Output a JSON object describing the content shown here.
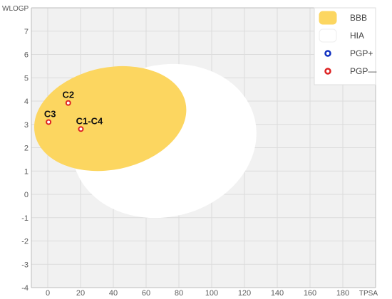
{
  "chart_data": {
    "type": "scatter",
    "xlabel": "TPSA",
    "ylabel": "WLOGP",
    "xlim": [
      -10,
      200
    ],
    "ylim": [
      -4,
      8
    ],
    "x_ticks": [
      0,
      20,
      40,
      60,
      80,
      100,
      120,
      140,
      160,
      180
    ],
    "y_ticks": [
      -4,
      -3,
      -2,
      -1,
      0,
      1,
      2,
      3,
      4,
      5,
      6,
      7
    ],
    "grid": true,
    "background": "#f1f1f1",
    "legend_position": "top-right",
    "regions": [
      {
        "name": "HIA",
        "shape": "ellipse",
        "center": [
          71.05,
          2.29
        ],
        "radius_x": 142.08,
        "radius_y": 8.13,
        "rotation_deg": -1.03,
        "color": "#ffffff"
      },
      {
        "name": "BBB",
        "shape": "ellipse",
        "center": [
          38.12,
          3.25
        ],
        "radius_x": 117.35,
        "radius_y": 5.48,
        "rotation_deg": -0.84,
        "color": "#fcd660"
      }
    ],
    "series": [
      {
        "name": "PGP+",
        "color": "#1030c0",
        "points": []
      },
      {
        "name": "PGP—",
        "color": "#dd2222",
        "points": [
          {
            "x": 12.5,
            "y": 3.92,
            "label": "C2"
          },
          {
            "x": 0.5,
            "y": 3.1,
            "label": "C3"
          },
          {
            "x": 20.2,
            "y": 2.8,
            "label": "C1-C4"
          }
        ]
      }
    ],
    "legend": [
      {
        "label": "BBB",
        "symbol": "box",
        "color": "#fcd660"
      },
      {
        "label": "HIA",
        "symbol": "box",
        "color": "#ffffff"
      },
      {
        "label": "PGP+",
        "symbol": "ring",
        "color": "#1030c0"
      },
      {
        "label": "PGP—",
        "symbol": "ring",
        "color": "#dd2222"
      }
    ]
  }
}
